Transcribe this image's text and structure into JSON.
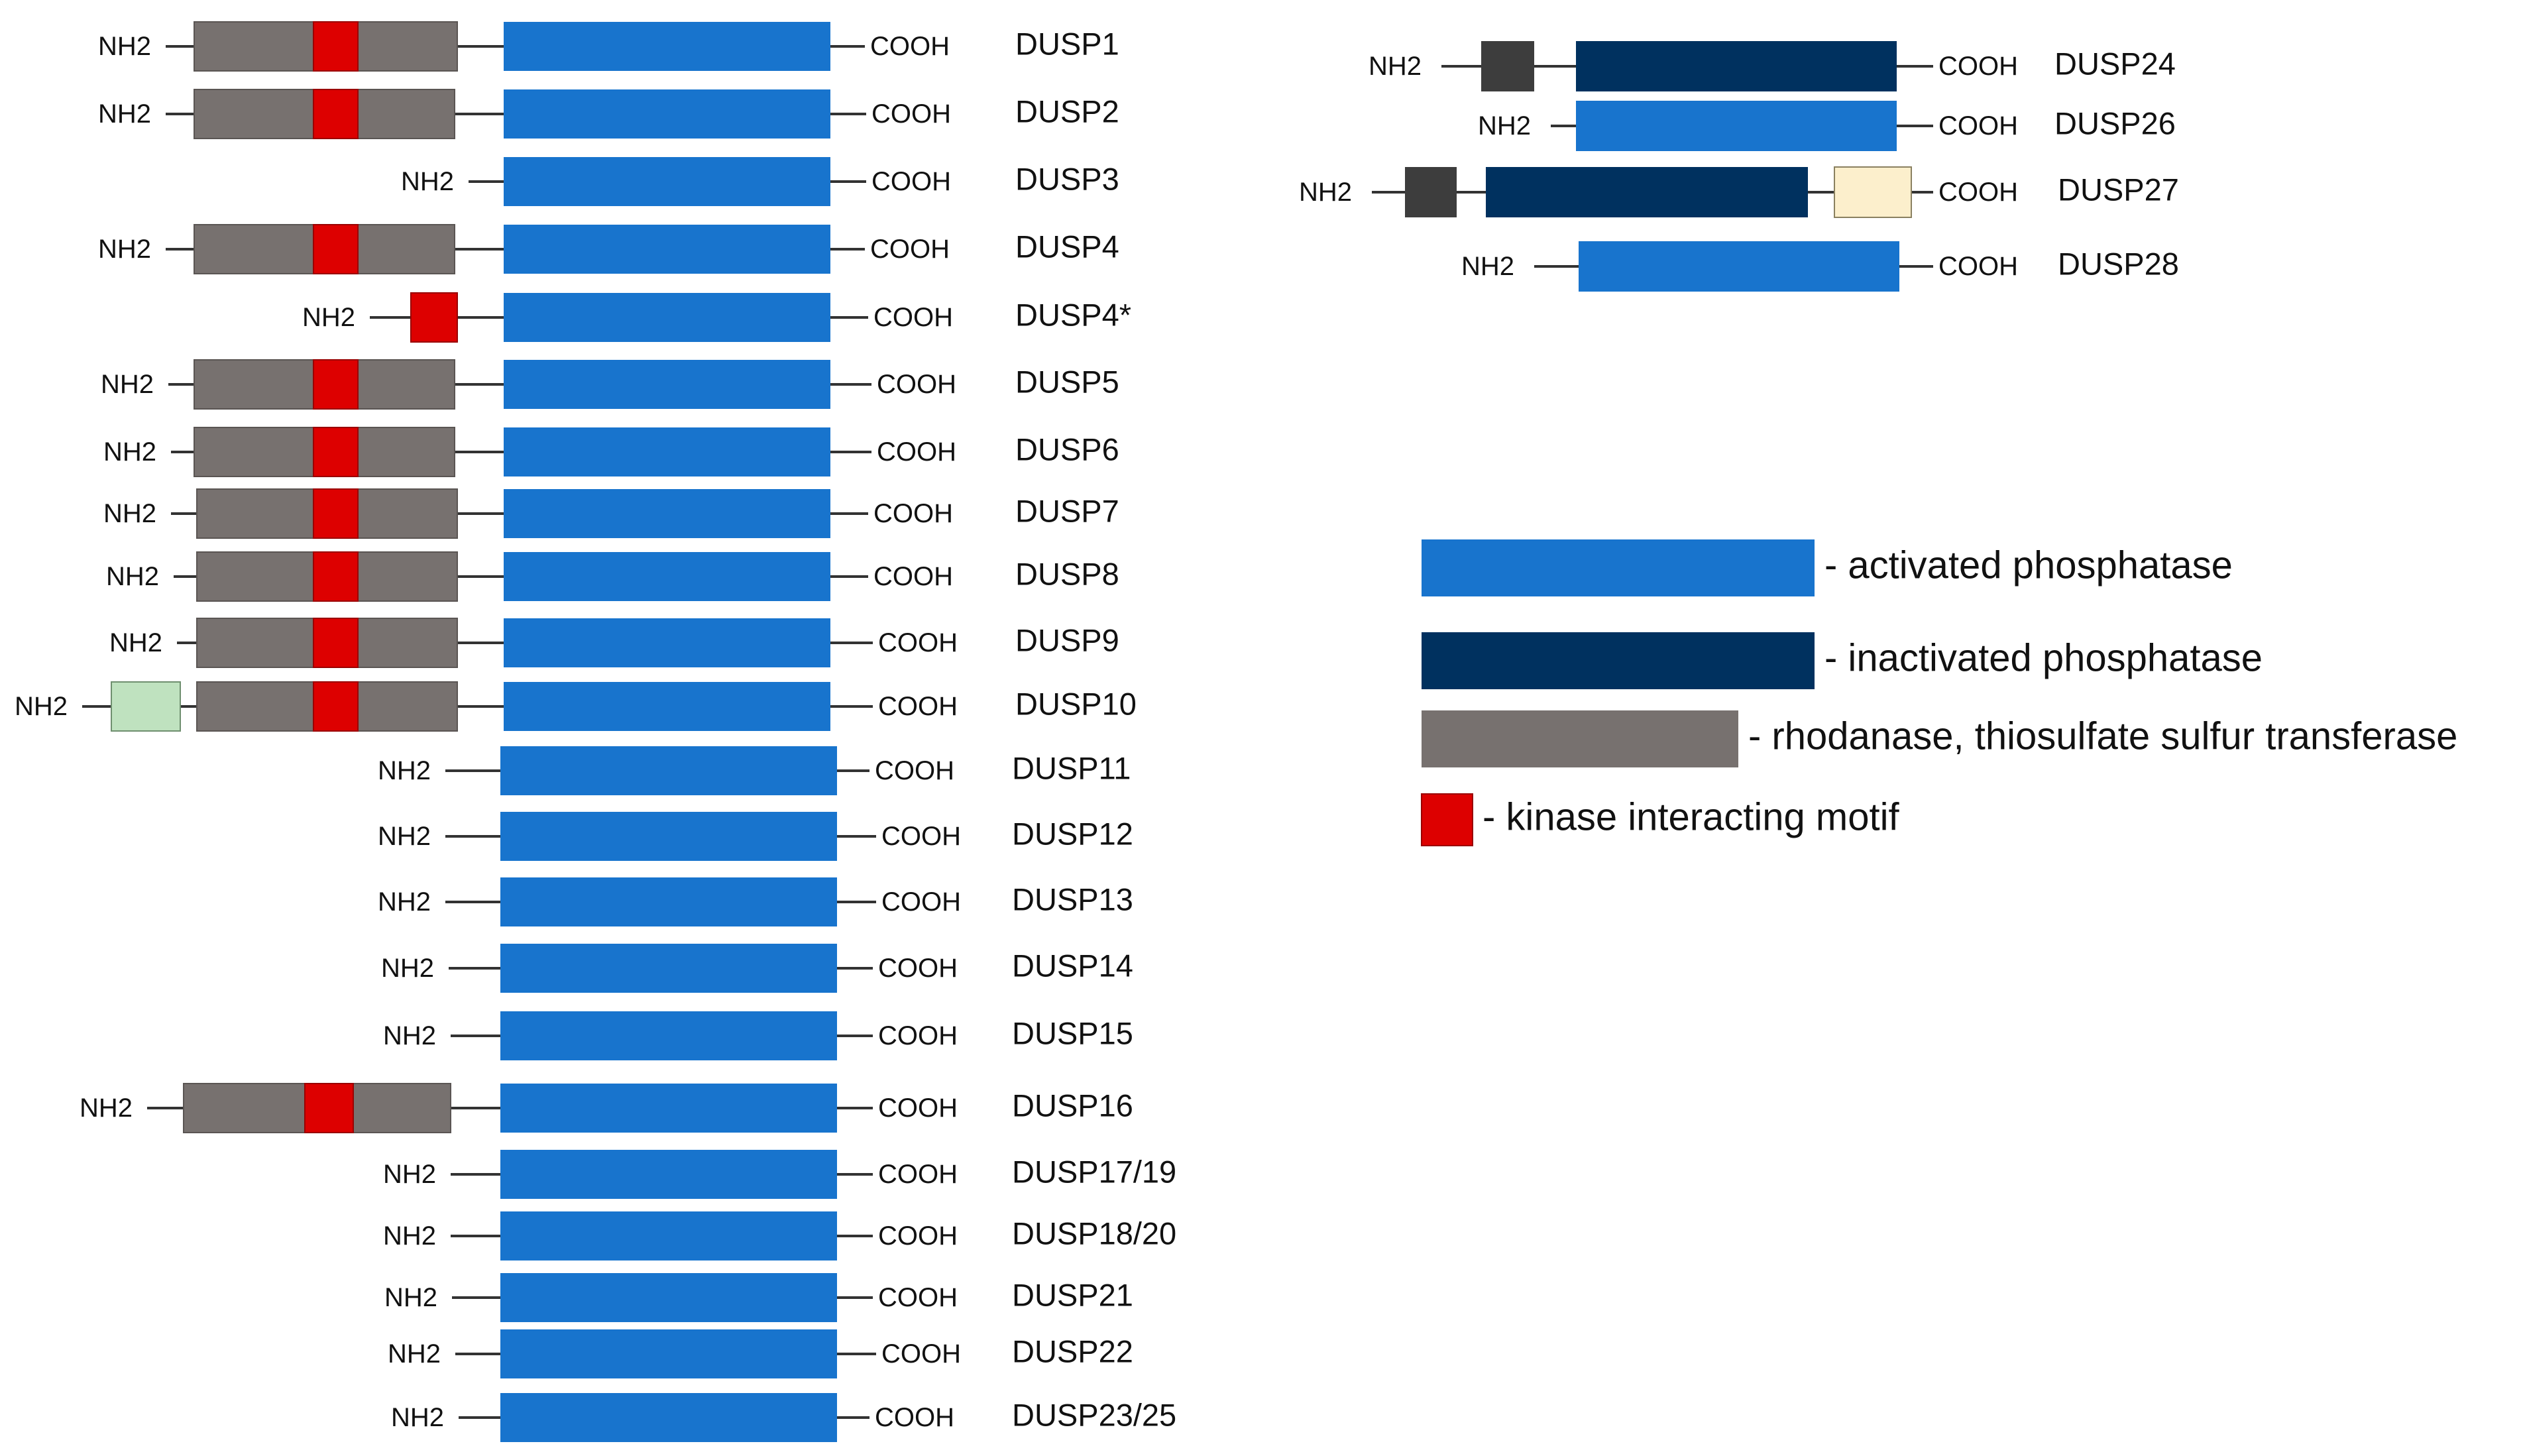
{
  "labels": {
    "n_terminus": "NH2",
    "c_terminus": "COOH"
  },
  "colors": {
    "activated": "#1874cd",
    "inactivated": "#00315f",
    "rhodanese": "#77716f",
    "kim": "#dd0000",
    "extra_green": "#bfe2bf",
    "extra_dark": "#3d3d3d",
    "extra_cream": "#fcefcc",
    "line": "#333333"
  },
  "proteins": [
    {
      "name": "DUSP1",
      "domains": [
        "rhodanese",
        "kim",
        "phosphatase"
      ]
    },
    {
      "name": "DUSP2",
      "domains": [
        "rhodanese",
        "kim",
        "phosphatase"
      ]
    },
    {
      "name": "DUSP3",
      "domains": [
        "phosphatase"
      ]
    },
    {
      "name": "DUSP4",
      "domains": [
        "rhodanese",
        "kim",
        "phosphatase"
      ]
    },
    {
      "name": "DUSP4*",
      "domains": [
        "kim",
        "phosphatase"
      ]
    },
    {
      "name": "DUSP5",
      "domains": [
        "rhodanese",
        "kim",
        "phosphatase"
      ]
    },
    {
      "name": "DUSP6",
      "domains": [
        "rhodanese",
        "kim",
        "phosphatase"
      ]
    },
    {
      "name": "DUSP7",
      "domains": [
        "rhodanese",
        "kim",
        "phosphatase"
      ]
    },
    {
      "name": "DUSP8",
      "domains": [
        "rhodanese",
        "kim",
        "phosphatase"
      ]
    },
    {
      "name": "DUSP9",
      "domains": [
        "rhodanese",
        "kim",
        "phosphatase"
      ]
    },
    {
      "name": "DUSP10",
      "domains": [
        "extra",
        "rhodanese",
        "kim",
        "phosphatase"
      ]
    },
    {
      "name": "DUSP11",
      "domains": [
        "phosphatase"
      ]
    },
    {
      "name": "DUSP12",
      "domains": [
        "phosphatase"
      ]
    },
    {
      "name": "DUSP13",
      "domains": [
        "phosphatase"
      ]
    },
    {
      "name": "DUSP14",
      "domains": [
        "phosphatase"
      ]
    },
    {
      "name": "DUSP15",
      "domains": [
        "phosphatase"
      ]
    },
    {
      "name": "DUSP16",
      "domains": [
        "rhodanese",
        "kim",
        "phosphatase"
      ]
    },
    {
      "name": "DUSP17/19",
      "domains": [
        "phosphatase"
      ]
    },
    {
      "name": "DUSP18/20",
      "domains": [
        "phosphatase"
      ]
    },
    {
      "name": "DUSP21",
      "domains": [
        "phosphatase"
      ]
    },
    {
      "name": "DUSP22",
      "domains": [
        "phosphatase"
      ]
    },
    {
      "name": "DUSP23/25",
      "domains": [
        "phosphatase"
      ]
    },
    {
      "name": "DUSP24",
      "domains": [
        "extra",
        "inactivated phosphatase"
      ]
    },
    {
      "name": "DUSP26",
      "domains": [
        "phosphatase"
      ]
    },
    {
      "name": "DUSP27",
      "domains": [
        "extra",
        "inactivated phosphatase",
        "extra"
      ]
    },
    {
      "name": "DUSP28",
      "domains": [
        "phosphatase"
      ]
    }
  ],
  "legend": [
    {
      "key": "activated",
      "label": "- activated phosphatase"
    },
    {
      "key": "inactivated",
      "label": "- inactivated phosphatase"
    },
    {
      "key": "rhodanese",
      "label": "- rhodanase, thiosulfate sulfur transferase"
    },
    {
      "key": "kim",
      "label": "- kinase interacting motif"
    }
  ]
}
